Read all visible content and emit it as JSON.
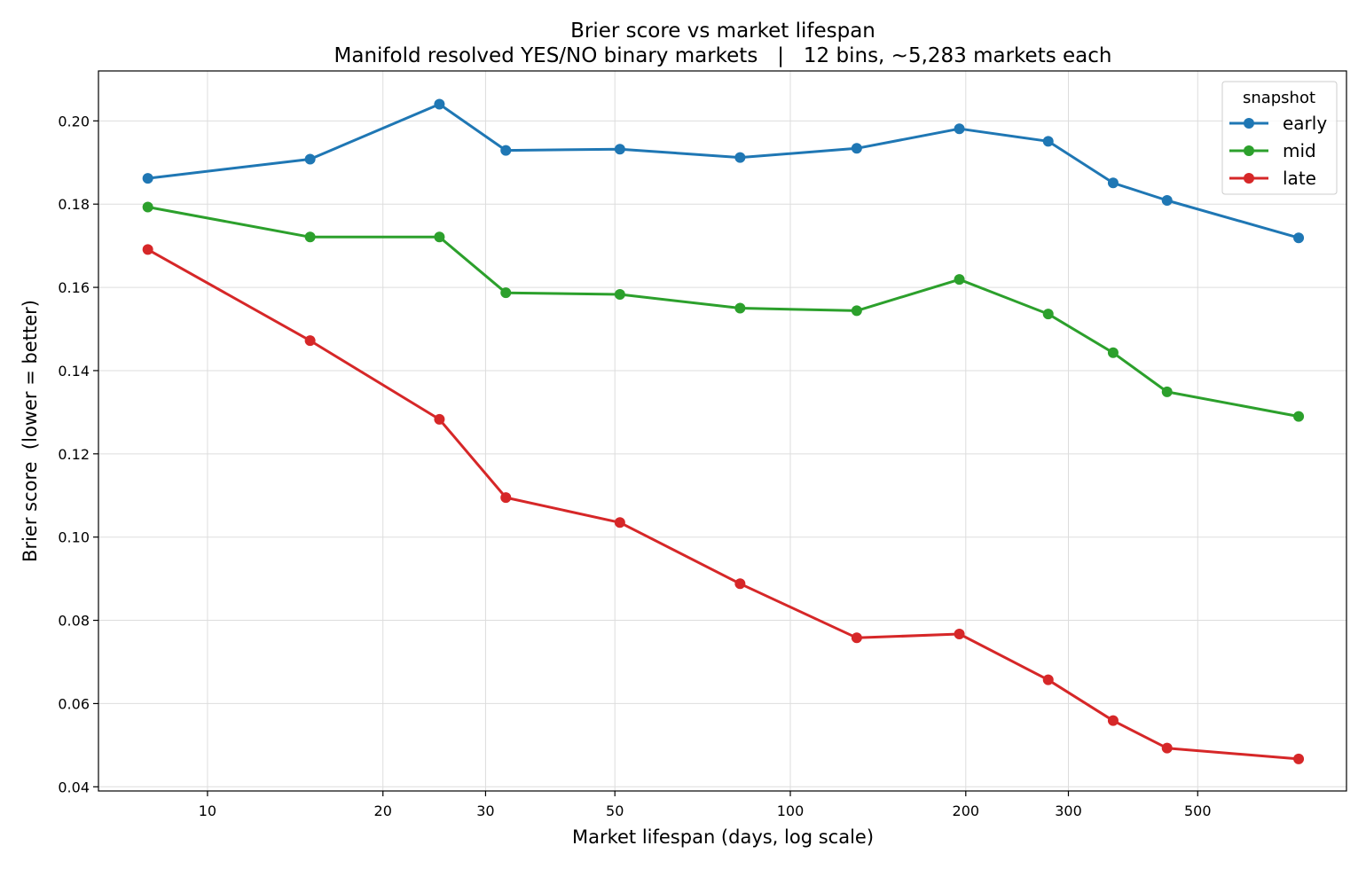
{
  "chart_data": {
    "type": "line",
    "title": "Brier score vs market lifespan",
    "subtitle": "Manifold resolved YES/NO binary markets   |   12 bins, ~5,283 markets each",
    "xlabel": "Market lifespan (days, log scale)",
    "ylabel": "Brier score  (lower = better)",
    "xscale": "log",
    "xlim": [
      6.5,
      900
    ],
    "ylim": [
      0.039,
      0.212
    ],
    "xticks": [
      10,
      20,
      30,
      50,
      100,
      200,
      300,
      500
    ],
    "xtick_labels": [
      "10",
      "20",
      "30",
      "50",
      "100",
      "200",
      "300",
      "500"
    ],
    "yticks": [
      0.04,
      0.06,
      0.08,
      0.1,
      0.12,
      0.14,
      0.16,
      0.18,
      0.2
    ],
    "ytick_labels": [
      "0.04",
      "0.06",
      "0.08",
      "0.10",
      "0.12",
      "0.14",
      "0.16",
      "0.18",
      "0.20"
    ],
    "grid": true,
    "legend": {
      "title": "snapshot",
      "placement": "top-right"
    },
    "x": [
      7.9,
      15,
      25,
      32.5,
      51,
      82,
      130,
      195,
      277,
      358,
      443,
      745
    ],
    "series": [
      {
        "name": "early",
        "color": "#1f77b4",
        "values": [
          0.1862,
          0.1908,
          0.204,
          0.1929,
          0.1932,
          0.1912,
          0.1934,
          0.1981,
          0.1951,
          0.1851,
          0.1809,
          0.1719
        ]
      },
      {
        "name": "mid",
        "color": "#2ca02c",
        "values": [
          0.1793,
          0.1721,
          0.1721,
          0.1587,
          0.1583,
          0.155,
          0.1544,
          0.1619,
          0.1536,
          0.1443,
          0.1349,
          0.129
        ]
      },
      {
        "name": "late",
        "color": "#d62728",
        "values": [
          0.1691,
          0.1472,
          0.1283,
          0.1095,
          0.1035,
          0.0888,
          0.0758,
          0.0767,
          0.0657,
          0.0559,
          0.0493,
          0.0467
        ]
      }
    ]
  }
}
